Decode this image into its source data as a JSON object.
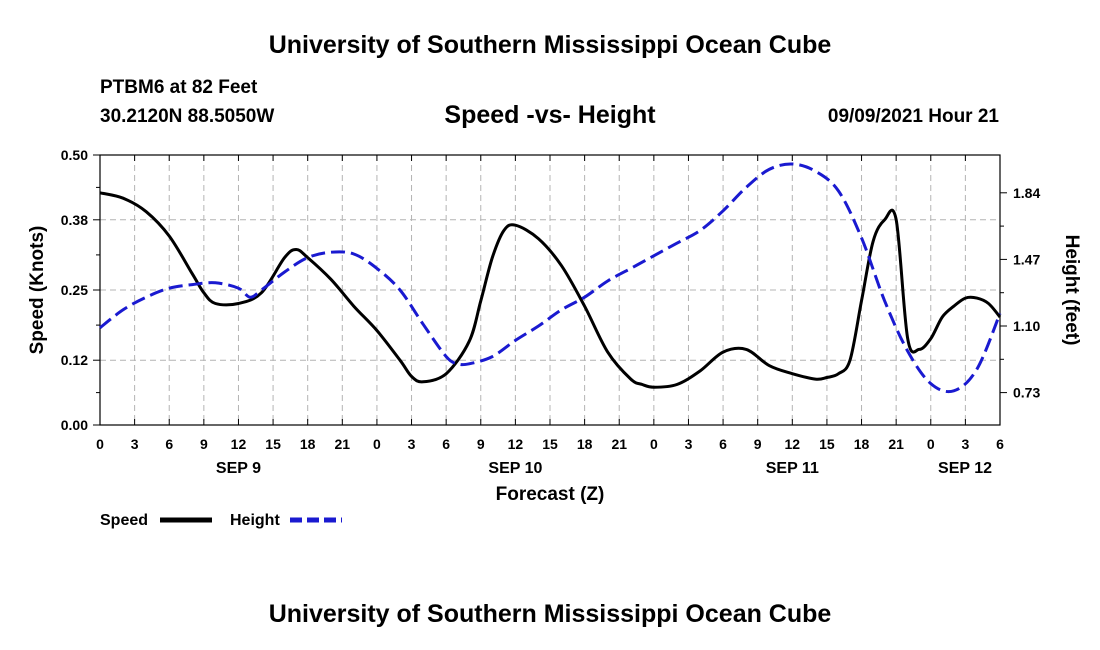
{
  "header": {
    "institution": "University of Southern Mississippi Ocean Cube",
    "station": "PTBM6 at 82 Feet",
    "coordinates": "30.2120N  88.5050W",
    "chart_title": "Speed -vs- Height",
    "datetime": "09/09/2021 Hour 21"
  },
  "footer": {
    "institution": "University of Southern Mississippi Ocean Cube"
  },
  "colors": {
    "speed": "#000000",
    "height": "#1a1ad0",
    "grid": "#b4b4b4"
  },
  "chart_data": {
    "type": "line",
    "title": "Speed -vs- Height",
    "xlabel": "Forecast (Z)",
    "ylabel": "Speed (Knots)",
    "y2label": "Height (feet)",
    "x_range_hours": [
      0,
      78
    ],
    "ylim": [
      0,
      0.5
    ],
    "y2lim": [
      0.55,
      2.05
    ],
    "yticks": [
      "0.00",
      "0.12",
      "0.25",
      "0.38",
      "0.50"
    ],
    "y2ticks": [
      "0.73",
      "1.10",
      "1.47",
      "1.84"
    ],
    "x_tick_hours": [
      0,
      3,
      6,
      9,
      12,
      15,
      18,
      21,
      24,
      27,
      30,
      33,
      36,
      39,
      42,
      45,
      48,
      51,
      54,
      57,
      60,
      63,
      66,
      69,
      72,
      75,
      78
    ],
    "x_tick_labels": [
      "0",
      "3",
      "6",
      "9",
      "12",
      "15",
      "18",
      "21",
      "0",
      "3",
      "6",
      "9",
      "12",
      "15",
      "18",
      "21",
      "0",
      "3",
      "6",
      "9",
      "12",
      "15",
      "18",
      "21",
      "0",
      "3",
      "6"
    ],
    "date_labels": [
      {
        "hour": 12,
        "label": "SEP 9"
      },
      {
        "hour": 36,
        "label": "SEP 10"
      },
      {
        "hour": 60,
        "label": "SEP 11"
      },
      {
        "hour": 78,
        "label": "SEP 12"
      }
    ],
    "legend": [
      {
        "name": "Speed",
        "style": "solid"
      },
      {
        "name": "Height",
        "style": "dashed"
      }
    ],
    "series": [
      {
        "name": "Speed",
        "axis": "left",
        "x": [
          0,
          2,
          4,
          6,
          8,
          9,
          10,
          12,
          14,
          16,
          17,
          18,
          20,
          22,
          24,
          26,
          27,
          28,
          30,
          32,
          33,
          34,
          35,
          36,
          38,
          40,
          42,
          44,
          46,
          47,
          48,
          50,
          52,
          54,
          56,
          58,
          60,
          62,
          63,
          64,
          65,
          66,
          67,
          68,
          69,
          70,
          71,
          72,
          73,
          74,
          75,
          76,
          77,
          78
        ],
        "values": [
          0.43,
          0.42,
          0.395,
          0.35,
          0.28,
          0.245,
          0.225,
          0.225,
          0.245,
          0.31,
          0.325,
          0.31,
          0.27,
          0.22,
          0.175,
          0.12,
          0.09,
          0.08,
          0.095,
          0.155,
          0.23,
          0.31,
          0.36,
          0.37,
          0.345,
          0.295,
          0.22,
          0.135,
          0.085,
          0.075,
          0.07,
          0.075,
          0.1,
          0.135,
          0.14,
          0.11,
          0.095,
          0.085,
          0.088,
          0.095,
          0.12,
          0.23,
          0.34,
          0.38,
          0.38,
          0.16,
          0.14,
          0.16,
          0.2,
          0.22,
          0.235,
          0.235,
          0.225,
          0.2
        ]
      },
      {
        "name": "Height",
        "axis": "right",
        "x": [
          0,
          2,
          4,
          6,
          8,
          10,
          12,
          13,
          14,
          16,
          18,
          20,
          22,
          24,
          26,
          28,
          30,
          31,
          32,
          34,
          36,
          38,
          40,
          42,
          44,
          46,
          48,
          50,
          52,
          54,
          56,
          58,
          60,
          62,
          64,
          66,
          68,
          70,
          72,
          74,
          76,
          78
        ],
        "values": [
          1.09,
          1.19,
          1.26,
          1.31,
          1.33,
          1.34,
          1.31,
          1.26,
          1.3,
          1.4,
          1.48,
          1.51,
          1.5,
          1.42,
          1.3,
          1.11,
          0.93,
          0.89,
          0.89,
          0.93,
          1.02,
          1.1,
          1.19,
          1.26,
          1.35,
          1.42,
          1.49,
          1.56,
          1.63,
          1.74,
          1.87,
          1.97,
          2.0,
          1.96,
          1.85,
          1.59,
          1.24,
          0.96,
          0.78,
          0.74,
          0.86,
          1.17
        ]
      }
    ]
  }
}
